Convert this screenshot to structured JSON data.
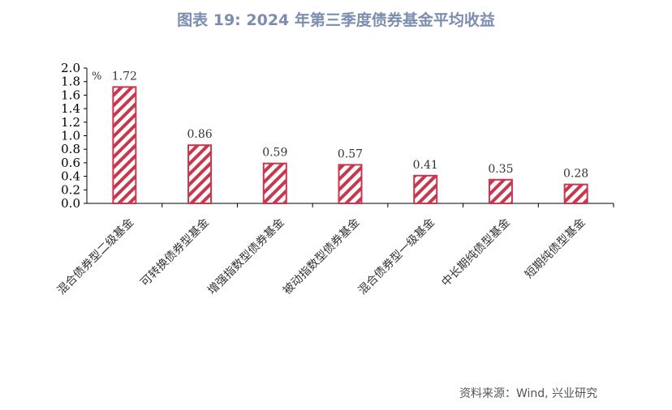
{
  "chart_data": {
    "type": "bar",
    "title": "图表 19: 2024 年第三季度债券基金平均收益",
    "ylabel": "%",
    "ylim": [
      0,
      2.0
    ],
    "yticks": [
      "0.0",
      "0.2",
      "0.4",
      "0.6",
      "0.8",
      "1.0",
      "1.2",
      "1.4",
      "1.6",
      "1.8",
      "2.0"
    ],
    "categories": [
      "混合债券型二级基金",
      "可转换债券型基金",
      "增强指数型债券基金",
      "被动指数型债券基金",
      "混合债券型一级基金",
      "中长期纯债型基金",
      "短期纯债型基金"
    ],
    "values": [
      1.72,
      0.86,
      0.59,
      0.57,
      0.41,
      0.35,
      0.28
    ],
    "labels": [
      "1.72",
      "0.86",
      "0.59",
      "0.57",
      "0.41",
      "0.35",
      "0.28"
    ],
    "bar_color": "#c8374d",
    "source": "资料来源：Wind, 兴业研究"
  }
}
